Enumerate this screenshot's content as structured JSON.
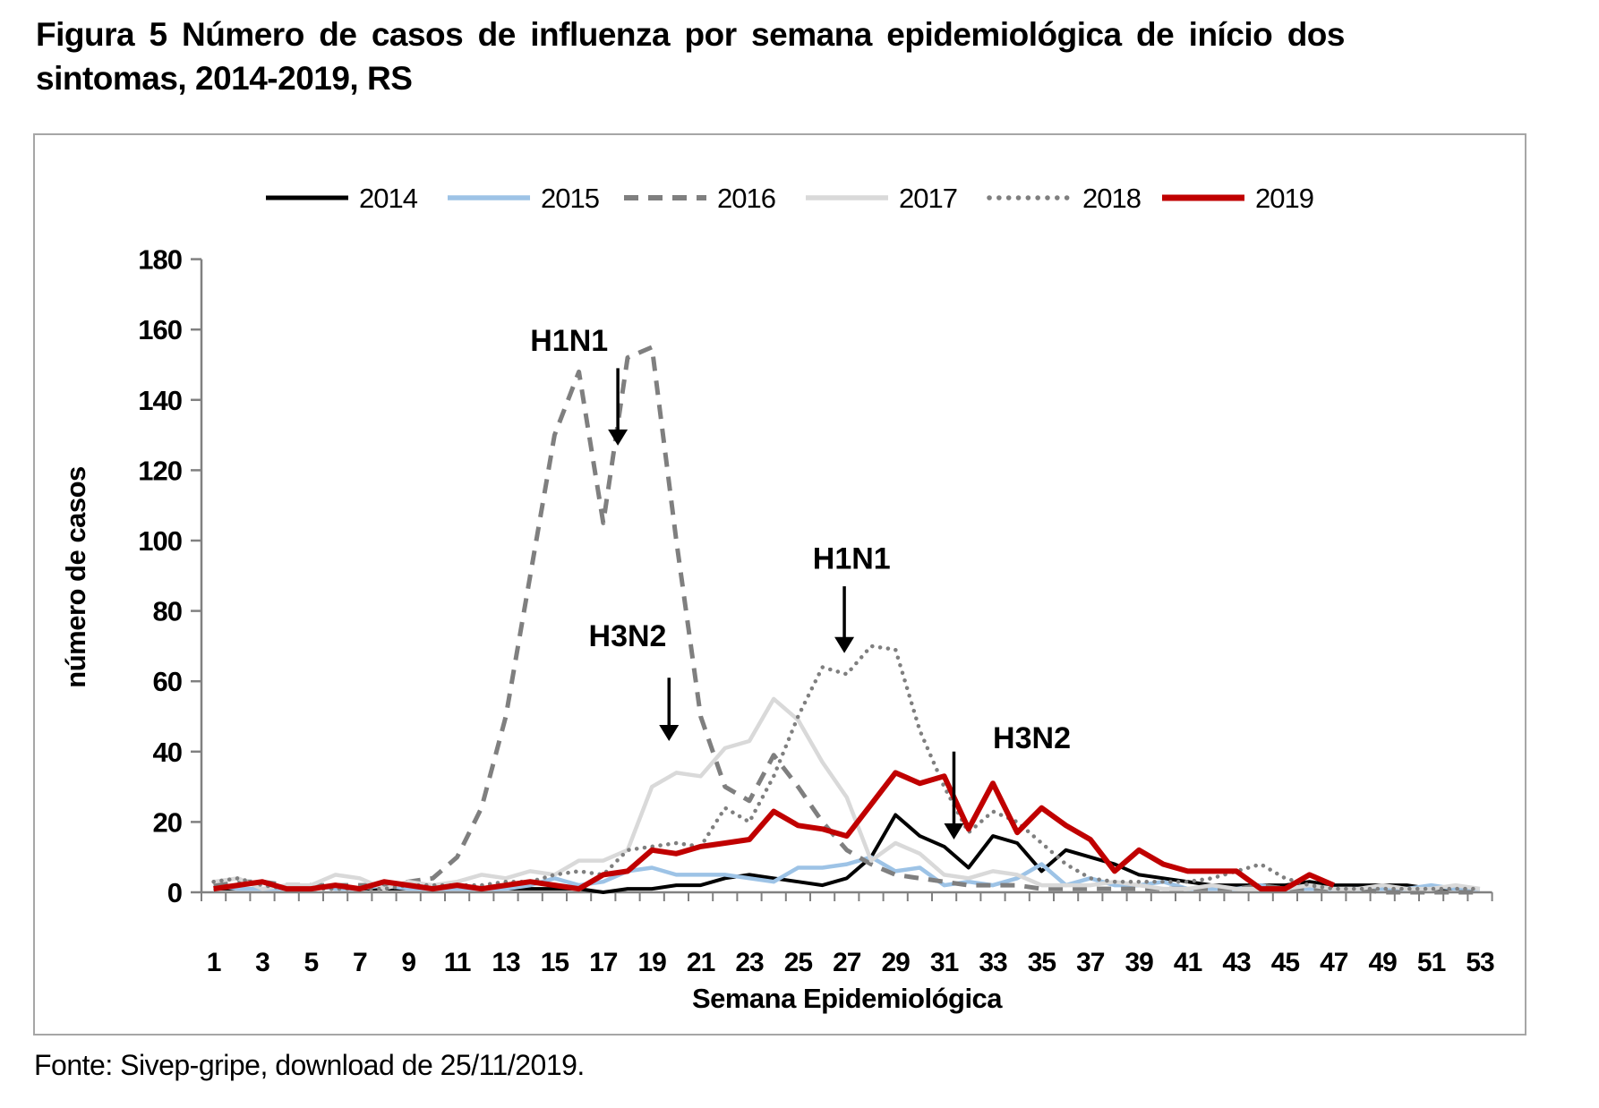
{
  "title": {
    "line1": "Figura 5 Número de casos de influenza por semana epidemiológica de início dos",
    "line2": "sintomas, 2014-2019, RS"
  },
  "footer": {
    "text": "Fonte: Sivep-gripe, download de 25/11/2019."
  },
  "chart_data": {
    "type": "line",
    "title": "",
    "xlabel": "Semana Epidemiológica",
    "ylabel": "número de casos",
    "x": [
      1,
      2,
      3,
      4,
      5,
      6,
      7,
      8,
      9,
      10,
      11,
      12,
      13,
      14,
      15,
      16,
      17,
      18,
      19,
      20,
      21,
      22,
      23,
      24,
      25,
      26,
      27,
      28,
      29,
      30,
      31,
      32,
      33,
      34,
      35,
      36,
      37,
      38,
      39,
      40,
      41,
      42,
      43,
      44,
      45,
      46,
      47,
      48,
      49,
      50,
      51,
      52,
      53
    ],
    "xtick_labels": [
      1,
      3,
      5,
      7,
      9,
      11,
      13,
      15,
      17,
      19,
      21,
      23,
      25,
      27,
      29,
      31,
      33,
      35,
      37,
      39,
      41,
      43,
      45,
      47,
      49,
      51,
      53
    ],
    "ylim": [
      0,
      180
    ],
    "ytick_step": 20,
    "grid": false,
    "legend_position": "top",
    "axis_color": "#808080",
    "frame_color": "#a6a6a6",
    "series": [
      {
        "name": "2014",
        "color": "#000000",
        "style": "solid",
        "width": 4,
        "values": [
          1,
          1,
          1,
          1,
          1,
          2,
          1,
          1,
          1,
          1,
          1,
          1,
          1,
          1,
          1,
          1,
          0,
          1,
          1,
          2,
          2,
          4,
          5,
          4,
          3,
          2,
          4,
          10,
          22,
          16,
          13,
          7,
          16,
          14,
          6,
          12,
          10,
          8,
          5,
          4,
          3,
          2,
          2,
          2,
          2,
          3,
          2,
          2,
          2,
          2,
          1,
          1,
          1
        ]
      },
      {
        "name": "2015",
        "color": "#9dc3e6",
        "style": "solid",
        "width": 4.5,
        "values": [
          2,
          1,
          1,
          1,
          2,
          1,
          1,
          2,
          1,
          1,
          1,
          1,
          1,
          2,
          4,
          2,
          3,
          6,
          7,
          5,
          5,
          5,
          4,
          3,
          7,
          7,
          8,
          10,
          6,
          7,
          2,
          3,
          2,
          4,
          8,
          2,
          4,
          2,
          2,
          3,
          1,
          1,
          1,
          2,
          1,
          1,
          1,
          1,
          1,
          1,
          2,
          1,
          1
        ]
      },
      {
        "name": "2016",
        "color": "#7f7f7f",
        "style": "dashed",
        "width": 5,
        "values": [
          2,
          3,
          3,
          2,
          2,
          2,
          2,
          2,
          3,
          4,
          10,
          24,
          50,
          90,
          130,
          148,
          105,
          152,
          155,
          100,
          50,
          30,
          26,
          39,
          30,
          20,
          12,
          8,
          5,
          4,
          3,
          2,
          2,
          2,
          1,
          1,
          1,
          1,
          1,
          1,
          1,
          1,
          1,
          2,
          1,
          1,
          1,
          1,
          0,
          0,
          0,
          0,
          0
        ]
      },
      {
        "name": "2017",
        "color": "#d9d9d9",
        "style": "solid",
        "width": 4.5,
        "values": [
          3,
          4,
          1,
          2,
          2,
          5,
          4,
          1,
          3,
          2,
          3,
          5,
          4,
          6,
          5,
          9,
          9,
          12,
          30,
          34,
          33,
          41,
          43,
          55,
          49,
          37,
          27,
          9,
          14,
          11,
          5,
          4,
          6,
          5,
          2,
          2,
          2,
          3,
          2,
          1,
          1,
          2,
          1,
          1,
          1,
          2,
          1,
          1,
          2,
          1,
          1,
          2,
          1
        ]
      },
      {
        "name": "2018",
        "color": "#7f7f7f",
        "style": "dotted",
        "width": 4.5,
        "values": [
          3,
          4,
          2,
          1,
          1,
          1,
          1,
          1,
          2,
          2,
          2,
          2,
          3,
          3,
          5,
          6,
          5,
          12,
          13,
          14,
          13,
          24,
          20,
          33,
          50,
          64,
          62,
          70,
          69,
          46,
          30,
          17,
          23,
          20,
          14,
          8,
          4,
          3,
          3,
          3,
          3,
          4,
          6,
          8,
          4,
          2,
          1,
          1,
          1,
          1,
          1,
          1,
          1
        ]
      },
      {
        "name": "2019",
        "color": "#c00000",
        "style": "solid",
        "width": 6,
        "values": [
          1,
          2,
          3,
          1,
          1,
          2,
          1,
          3,
          2,
          1,
          2,
          1,
          2,
          3,
          2,
          1,
          5,
          6,
          12,
          11,
          13,
          14,
          15,
          23,
          19,
          18,
          16,
          25,
          34,
          31,
          33,
          18,
          31,
          17,
          24,
          19,
          15,
          6,
          12,
          8,
          6,
          6,
          6,
          1,
          1,
          5,
          2,
          null,
          null,
          null,
          null,
          null,
          null
        ]
      }
    ],
    "annotations": [
      {
        "text": "H1N1",
        "label_week": 15.6,
        "label_value": 157,
        "arrow_week": 17.6,
        "arrow_from_value": 149,
        "arrow_to_value": 127
      },
      {
        "text": "H3N2",
        "label_week": 18.0,
        "label_value": 73,
        "arrow_week": 19.7,
        "arrow_from_value": 61,
        "arrow_to_value": 43
      },
      {
        "text": "H1N1",
        "label_week": 27.2,
        "label_value": 95,
        "arrow_week": 26.9,
        "arrow_from_value": 87,
        "arrow_to_value": 68
      },
      {
        "text": "H3N2",
        "label_week": 34.6,
        "label_value": 44,
        "arrow_week": 31.4,
        "arrow_from_value": 40,
        "arrow_to_value": 15
      }
    ]
  }
}
